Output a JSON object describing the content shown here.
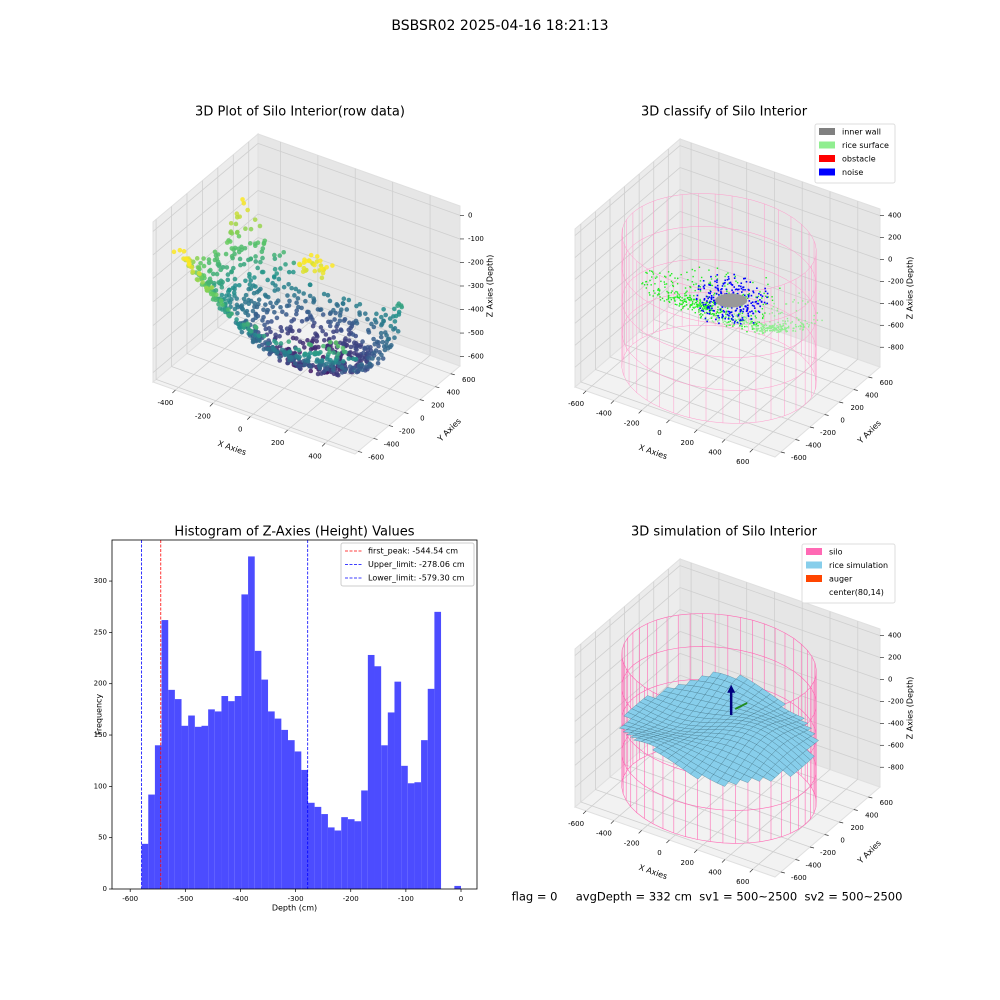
{
  "title": "BSBSR02 2025-04-16 18:21:13",
  "footer": "flag = 0     avgDepth = 332 cm  sv1 = 500~2500  sv2 = 500~2500",
  "chart_data": [
    {
      "type": "scatter3d",
      "title": "3D Plot of Silo Interior(row data)",
      "xlabel": "X Axies",
      "ylabel": "Y Axies",
      "zlabel": "Z Axies (Depth)",
      "xlim": [
        -520,
        560
      ],
      "ylim": [
        -640,
        720
      ],
      "zlim": [
        -640,
        40
      ],
      "xticks": [
        -400,
        -200,
        0,
        200,
        400
      ],
      "yticks": [
        -600,
        -400,
        -200,
        0,
        200,
        400,
        600
      ],
      "zticks": [
        -600,
        -500,
        -400,
        -300,
        -200,
        -100,
        0
      ],
      "grid": true
    },
    {
      "type": "scatter3d",
      "title": "3D classify of Silo Interior",
      "xlabel": "X Axies",
      "ylabel": "Y Axies",
      "zlabel": "Z Axies (Depth)",
      "xlim": [
        -680,
        760
      ],
      "ylim": [
        -680,
        760
      ],
      "zlim": [
        -980,
        460
      ],
      "xticks": [
        -600,
        -400,
        -200,
        0,
        200,
        400,
        600
      ],
      "yticks": [
        -600,
        -400,
        -200,
        0,
        200,
        400,
        600
      ],
      "zticks": [
        -800,
        -600,
        -400,
        -200,
        0,
        200,
        400
      ],
      "grid": true,
      "legend_position": "upper right",
      "legend": [
        {
          "name": "inner wall",
          "color": "#808080"
        },
        {
          "name": "rice surface",
          "color": "#90ee90"
        },
        {
          "name": "obstacle",
          "color": "#ff0000"
        },
        {
          "name": "noise",
          "color": "#0000ff"
        }
      ]
    },
    {
      "type": "histogram",
      "title": "Histogram of Z-Axies (Height) Values",
      "xlabel": "Depth (cm)",
      "ylabel": "Frequency",
      "color": "#4c4cff",
      "bins": [
        -579.3,
        -567.23,
        -555.16,
        -543.09,
        -531.03,
        -518.96,
        -506.89,
        -494.82,
        -482.75,
        -470.68,
        -458.61,
        -446.54,
        -434.48,
        -422.41,
        -410.34,
        -398.27,
        -386.2,
        -374.13,
        -362.06,
        -349.99,
        -337.93,
        -325.86,
        -313.79,
        -301.72,
        -289.65,
        -277.58,
        -265.51,
        -253.44,
        -241.38,
        -229.31,
        -217.24,
        -205.17,
        -193.1,
        -181.03,
        -168.96,
        -156.89,
        -144.83,
        -132.76,
        -120.69,
        -108.62,
        -96.55,
        -84.48,
        -72.41,
        -60.34,
        -48.28,
        -36.21,
        -24.14,
        -12.07,
        0
      ],
      "values": [
        44,
        92,
        140,
        262,
        194,
        185,
        159,
        169,
        158,
        159,
        175,
        173,
        188,
        183,
        188,
        287,
        324,
        232,
        204,
        173,
        166,
        155,
        145,
        134,
        116,
        84,
        80,
        73,
        60,
        57,
        70,
        68,
        66,
        96,
        228,
        217,
        140,
        172,
        202,
        120,
        103,
        104,
        145,
        195,
        270,
        0,
        0,
        3
      ],
      "xlim": [
        -633,
        29
      ],
      "ylim": [
        0,
        340
      ],
      "xticks": [
        -600,
        -500,
        -400,
        -300,
        -200,
        -100,
        0
      ],
      "yticks": [
        0,
        50,
        100,
        150,
        200,
        250,
        300
      ],
      "legend_position": "upper right",
      "vlines": [
        {
          "value": -544.54,
          "label": "first_peak: -544.54 cm",
          "color": "#ff0000"
        },
        {
          "value": -278.06,
          "label": "Upper_limit: -278.06 cm",
          "color": "#0000ff"
        },
        {
          "value": -579.3,
          "label": "Lower_limit: -579.30 cm",
          "color": "#0000ff"
        }
      ]
    },
    {
      "type": "surface3d",
      "title": "3D simulation of Silo Interior",
      "xlabel": "X Axies",
      "ylabel": "Y Axies",
      "zlabel": "Z Axies (Depth)",
      "xlim": [
        -680,
        760
      ],
      "ylim": [
        -680,
        760
      ],
      "zlim": [
        -980,
        460
      ],
      "xticks": [
        -600,
        -400,
        -200,
        0,
        200,
        400,
        600
      ],
      "yticks": [
        -600,
        -400,
        -200,
        0,
        200,
        400,
        600
      ],
      "zticks": [
        -800,
        -600,
        -400,
        -200,
        0,
        200,
        400
      ],
      "grid": true,
      "legend_position": "upper right",
      "legend": [
        {
          "name": "silo",
          "color": "#ff69b4"
        },
        {
          "name": "rice simulation",
          "color": "#87ceeb"
        },
        {
          "name": "auger",
          "color": "#ff4500"
        },
        {
          "name": "center(80,14)",
          "color": "#ffffff"
        }
      ]
    }
  ]
}
